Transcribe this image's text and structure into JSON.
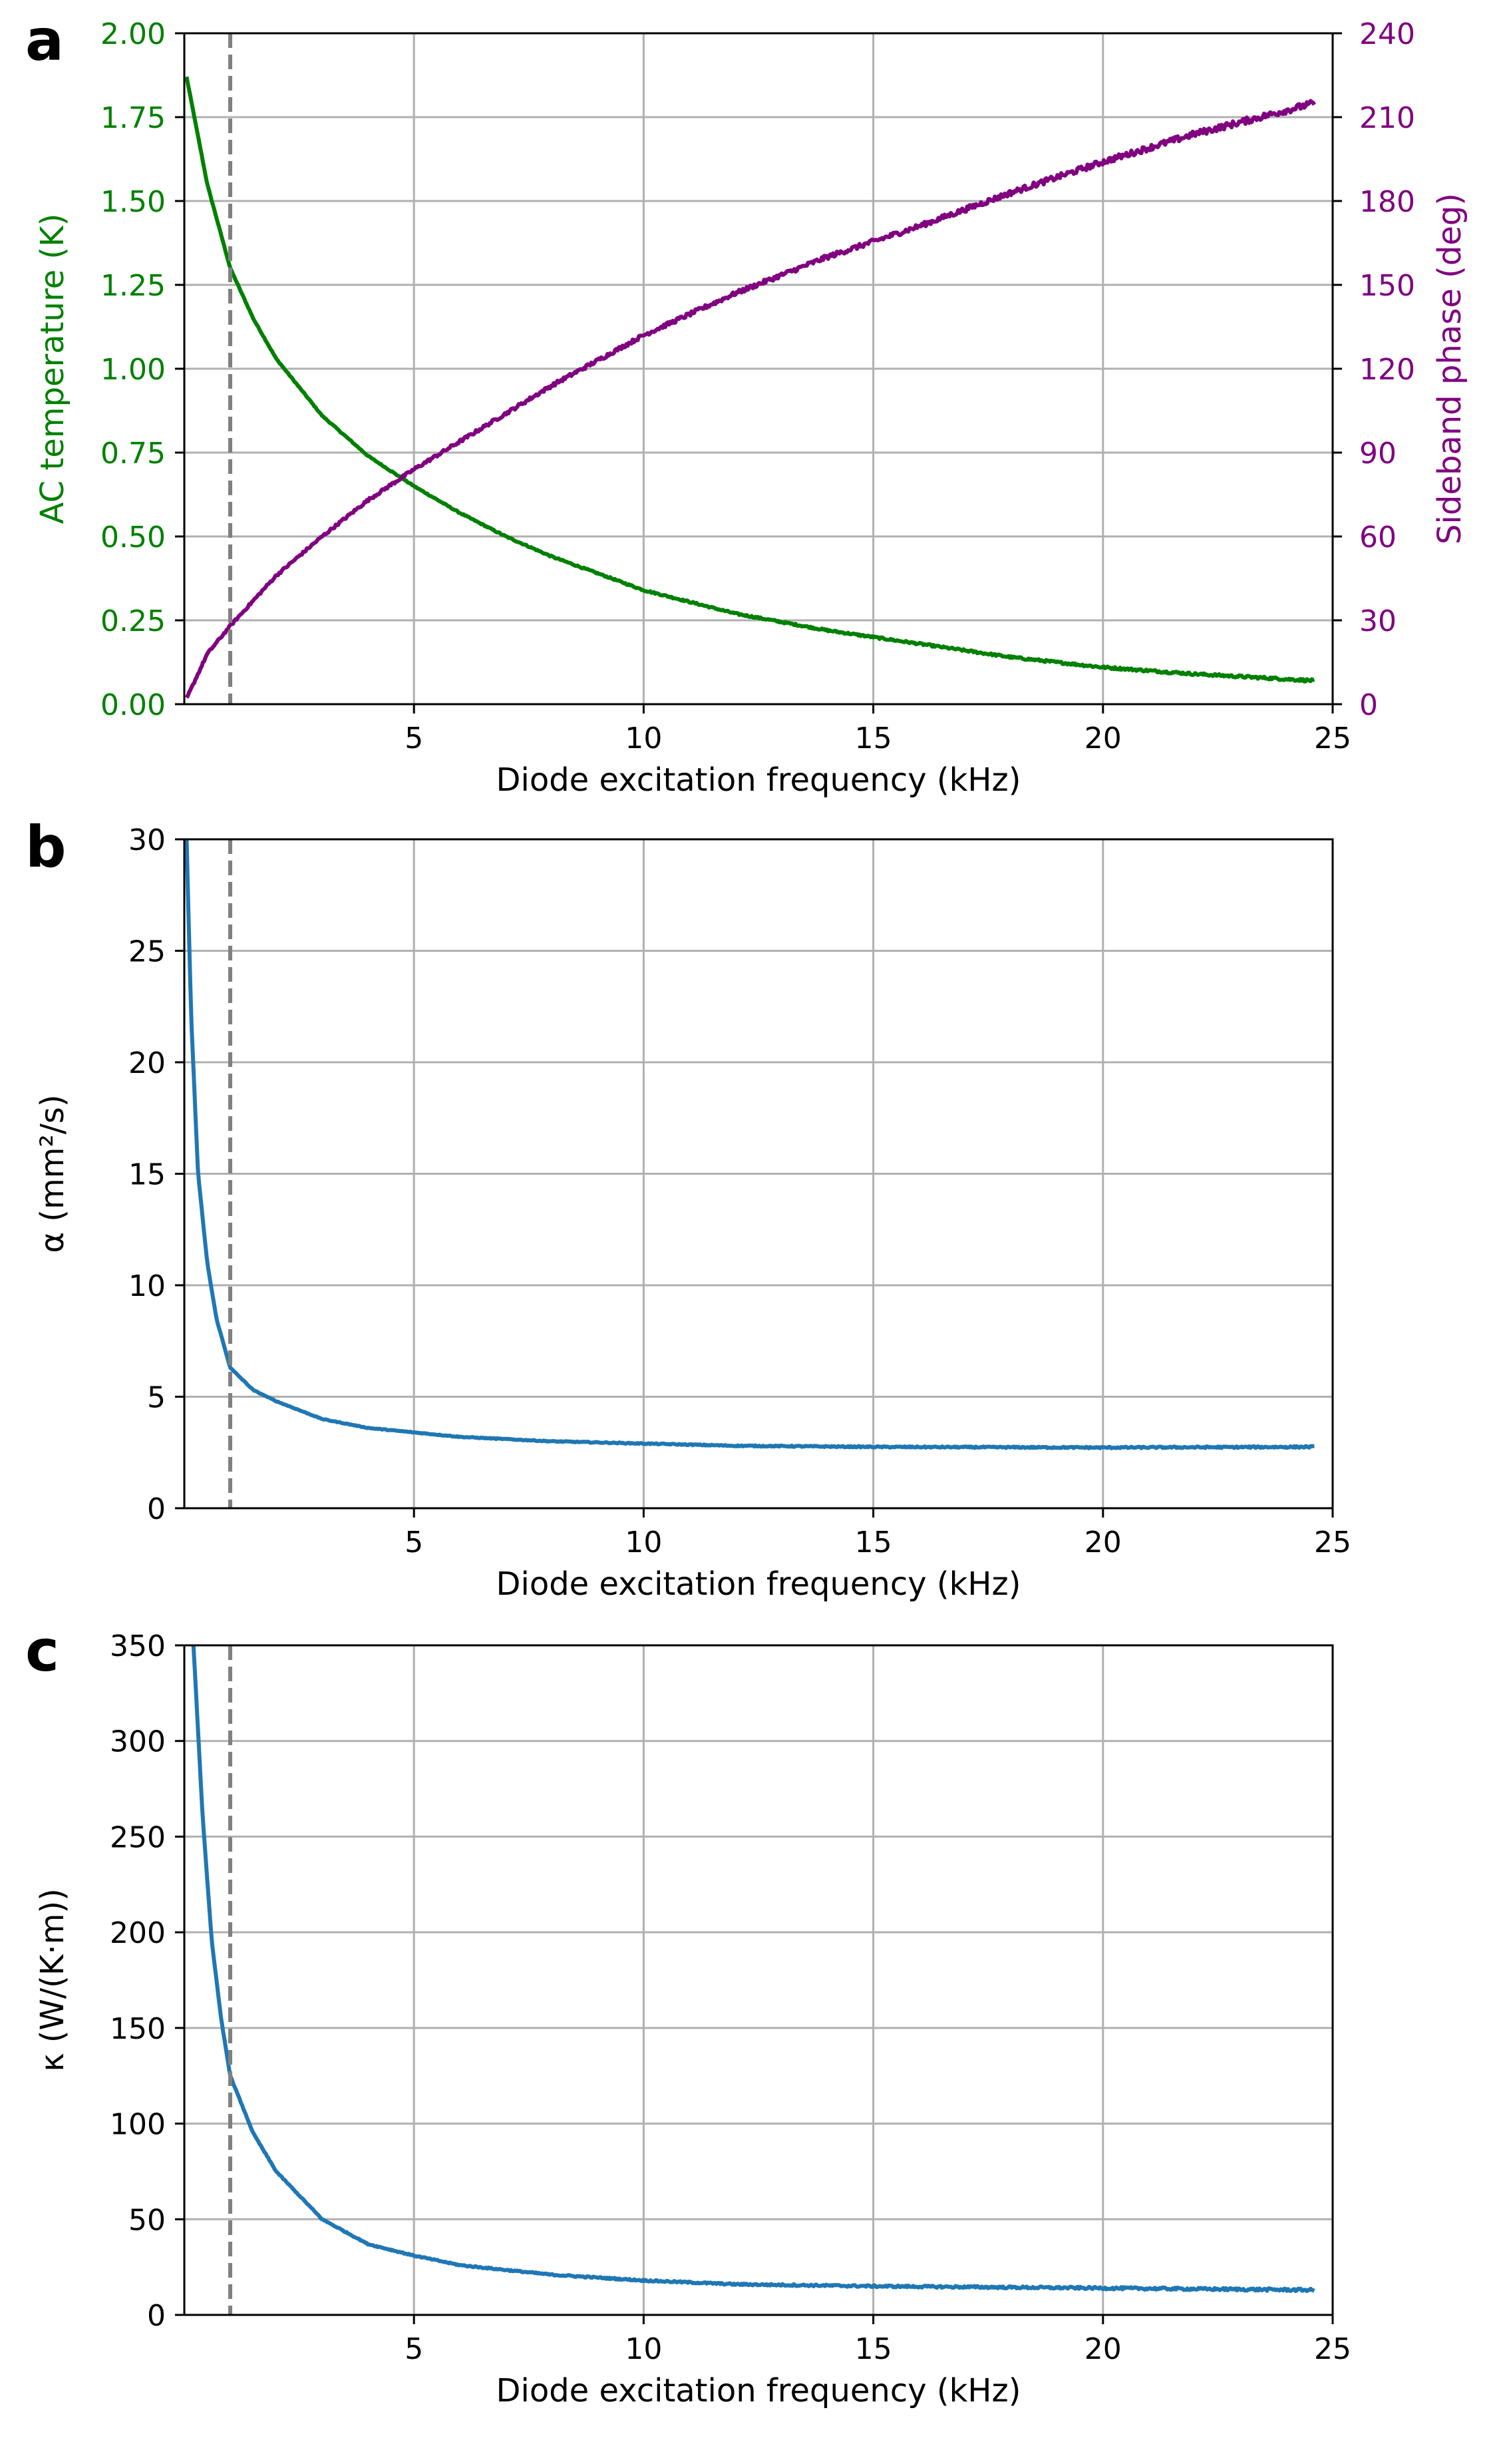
{
  "colors": {
    "temperature": "#008000",
    "phase": "#800080",
    "series": "#1f77b4",
    "grid": "#b0b0b0",
    "marker": "#808080",
    "axis": "#000000"
  },
  "chart_data": [
    {
      "panel_label": "a",
      "type": "line",
      "xlabel": "Diode excitation frequency (kHz)",
      "xlim": [
        0,
        25
      ],
      "xticks": [
        5,
        10,
        15,
        20,
        25
      ],
      "marker_x": 1.0,
      "grid": true,
      "ylabel_left": "AC temperature (K)",
      "ylim_left": [
        0,
        2.0
      ],
      "yticks_left": [
        "0.00",
        "0.25",
        "0.50",
        "0.75",
        "1.00",
        "1.25",
        "1.50",
        "1.75",
        "2.00"
      ],
      "ylabel_right": "Sideband phase (deg)",
      "ylim_right": [
        0,
        240
      ],
      "yticks_right": [
        "0",
        "30",
        "60",
        "90",
        "120",
        "150",
        "180",
        "210",
        "240"
      ],
      "series": [
        {
          "name": "AC temperature",
          "axis": "left",
          "color_key": "temperature",
          "noise": 0.004,
          "x": [
            0.05,
            0.5,
            1,
            1.5,
            2,
            3,
            4,
            5,
            6,
            7,
            8,
            9,
            10,
            12,
            14,
            16,
            18,
            20,
            22,
            24.6
          ],
          "y": [
            1.87,
            1.55,
            1.3,
            1.15,
            1.03,
            0.86,
            0.74,
            0.65,
            0.57,
            0.5,
            0.44,
            0.39,
            0.34,
            0.27,
            0.22,
            0.18,
            0.14,
            0.11,
            0.09,
            0.07
          ]
        },
        {
          "name": "Sideband phase",
          "axis": "right",
          "color_key": "phase",
          "noise": 1.2,
          "x": [
            0.05,
            0.5,
            1,
            1.5,
            2,
            3,
            4,
            5,
            6,
            7,
            8,
            9,
            10,
            12,
            14,
            16,
            18,
            20,
            22,
            24.6
          ],
          "y": [
            2,
            18,
            28,
            37,
            46,
            60,
            73,
            84,
            94,
            104,
            114,
            123,
            132,
            147,
            160,
            171,
            183,
            194,
            204,
            215
          ]
        }
      ]
    },
    {
      "panel_label": "b",
      "type": "line",
      "xlabel": "Diode excitation frequency (kHz)",
      "xlim": [
        0,
        25
      ],
      "xticks": [
        5,
        10,
        15,
        20,
        25
      ],
      "marker_x": 1.0,
      "grid": true,
      "ylabel": "α (mm²/s)",
      "ylim": [
        0,
        30
      ],
      "yticks": [
        "0",
        "5",
        "10",
        "15",
        "20",
        "25",
        "30"
      ],
      "series": [
        {
          "name": "α",
          "color_key": "series",
          "noise": 0.04,
          "x": [
            0.05,
            0.15,
            0.3,
            0.5,
            0.7,
            1,
            1.5,
            2,
            3,
            4,
            5,
            6,
            8,
            10,
            12,
            15,
            20,
            24.6
          ],
          "y": [
            30,
            22,
            15,
            11,
            8.5,
            6.3,
            5.3,
            4.8,
            4.0,
            3.6,
            3.4,
            3.2,
            3.0,
            2.9,
            2.8,
            2.75,
            2.72,
            2.75
          ]
        }
      ]
    },
    {
      "panel_label": "c",
      "type": "line",
      "xlabel": "Diode excitation frequency (kHz)",
      "xlim": [
        0,
        25
      ],
      "xticks": [
        5,
        10,
        15,
        20,
        25
      ],
      "marker_x": 1.0,
      "grid": true,
      "ylabel": "κ (W/(K·m))",
      "ylim": [
        0,
        350
      ],
      "yticks": [
        "0",
        "50",
        "100",
        "150",
        "200",
        "250",
        "300",
        "350"
      ],
      "series": [
        {
          "name": "κ",
          "color_key": "series",
          "noise": 0.7,
          "x": [
            0.2,
            0.4,
            0.6,
            0.8,
            1,
            1.5,
            2,
            3,
            4,
            5,
            6,
            8,
            10,
            12,
            15,
            20,
            24.6
          ],
          "y": [
            350,
            260,
            195,
            155,
            125,
            95,
            75,
            50,
            37,
            31,
            26,
            21,
            18,
            16,
            15,
            14,
            13
          ]
        }
      ]
    }
  ]
}
